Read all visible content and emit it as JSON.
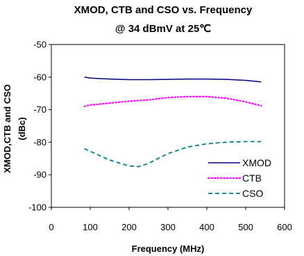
{
  "chart_data": {
    "type": "line",
    "title_line1": "XMOD, CTB and CSO vs. Frequency",
    "title_line2": "@ 34 dBmV at 25℃",
    "xlabel": "Frequency (MHz)",
    "ylabel_line1": "XMOD,CTB and CSO",
    "ylabel_line2": "(dBc)",
    "xlim": [
      0,
      600
    ],
    "ylim": [
      -100,
      -50
    ],
    "xticks": [
      "0",
      "100",
      "200",
      "300",
      "400",
      "500",
      "600"
    ],
    "yticks": [
      "-50",
      "-60",
      "-70",
      "-80",
      "-90",
      "-100"
    ],
    "grid": false,
    "legend_position": "bottom-right",
    "series": [
      {
        "name": "XMOD",
        "color": "#000080",
        "style": "solid",
        "x": [
          85,
          100,
          150,
          200,
          250,
          300,
          350,
          400,
          450,
          500,
          540
        ],
        "y": [
          -60,
          -60.3,
          -60.6,
          -60.8,
          -60.8,
          -60.7,
          -60.6,
          -60.6,
          -60.7,
          -61.0,
          -61.5
        ]
      },
      {
        "name": "CTB",
        "color": "#ff00ff",
        "style": "dotted",
        "x": [
          85,
          100,
          150,
          200,
          250,
          300,
          350,
          400,
          450,
          500,
          540
        ],
        "y": [
          -69,
          -68.6,
          -68.0,
          -67.4,
          -67.0,
          -66.3,
          -66.0,
          -66.0,
          -66.5,
          -67.6,
          -68.8
        ]
      },
      {
        "name": "CSO",
        "color": "#008080",
        "style": "dashed",
        "x": [
          85,
          100,
          150,
          200,
          225,
          250,
          300,
          350,
          400,
          450,
          500,
          540
        ],
        "y": [
          -82,
          -82.8,
          -85.5,
          -87.3,
          -87.5,
          -86.5,
          -83.5,
          -81.5,
          -80.5,
          -80.0,
          -79.8,
          -79.8
        ]
      }
    ]
  }
}
